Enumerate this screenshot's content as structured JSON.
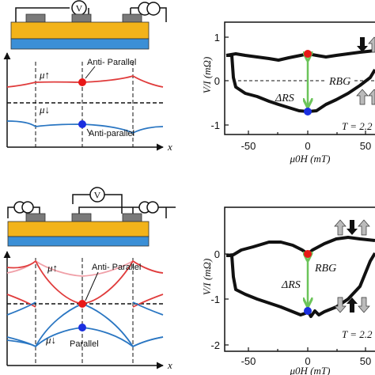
{
  "top_left": {
    "voltmeter": "V",
    "mu_up": "μ↑",
    "mu_down": "μ↓",
    "state_upper": "Anti- Parallel",
    "state_lower": "Anti-parallel",
    "x_axis": "x"
  },
  "bottom_left": {
    "voltmeter": "V",
    "mu_up": "μ↑",
    "mu_down": "μ↓",
    "state_upper": "Anti- Parallel",
    "state_lower": "Parallel",
    "x_axis": "x"
  },
  "top_right": {
    "ylabel": "V/I (mΩ)",
    "xlabel": "μ0H (mT)",
    "rbg_label": "RBG",
    "delta_label": "ΔRS",
    "temperature": "T = 2.2",
    "xticks": [
      "-50",
      "0",
      "50"
    ],
    "yticks": [
      "1",
      "0",
      "-1"
    ]
  },
  "bottom_right": {
    "ylabel": "V/I (mΩ)",
    "xlabel": "μ0H (mT)",
    "rbg_label": "RBG",
    "delta_label": "ΔRS",
    "temperature": "T = 2.2",
    "xticks": [
      "-50",
      "0",
      "50"
    ],
    "yticks": [
      "0",
      "-1",
      "-2"
    ]
  },
  "colors": {
    "gold": "#f2b31a",
    "blue_substrate": "#3b8fd6",
    "contact_gray": "#7a7a7a",
    "red_curve": "#e03c3c",
    "pink_curve": "#f0a0a8",
    "blue_curve": "#2a76c2",
    "green_arrow": "#6cc45a",
    "red_dot": "#e81818",
    "blue_dot": "#1a2fe0"
  },
  "chart_data": [
    {
      "type": "scatter",
      "xlabel": "μ0H (mT)",
      "ylabel": "V/I (mΩ)",
      "xlim": [
        -90,
        85
      ],
      "ylim": [
        -1.3,
        1.3
      ],
      "series": [
        {
          "x": [
            -90,
            -80,
            -60,
            -40,
            -20,
            0,
            20,
            40,
            60,
            85
          ],
          "y": [
            0.7,
            0.7,
            0.65,
            0.58,
            0.6,
            0.62,
            0.6,
            0.62,
            0.67,
            0.72
          ]
        },
        {
          "x": [
            -90,
            -80,
            -78,
            -70,
            -60,
            -40,
            -20,
            0,
            20,
            40,
            60,
            80,
            85
          ],
          "y": [
            0.7,
            0.65,
            -0.3,
            -0.35,
            -0.4,
            -0.55,
            -0.6,
            -0.62,
            -0.55,
            -0.35,
            -0.2,
            0.15,
            0.3
          ]
        }
      ]
    },
    {
      "type": "scatter",
      "xlabel": "μ0H (mT)",
      "ylabel": "V/I (mΩ)",
      "xlim": [
        -90,
        85
      ],
      "ylim": [
        -2.2,
        0.8
      ],
      "series": [
        {
          "x": [
            -90,
            -75,
            -60,
            -40,
            -20,
            0,
            20,
            40,
            60,
            85
          ],
          "y": [
            0.05,
            0.15,
            0.25,
            0.35,
            0.3,
            0.0,
            0.25,
            0.4,
            0.35,
            0.3
          ]
        },
        {
          "x": [
            -90,
            -80,
            -75,
            -70,
            -60,
            -40,
            -20,
            0,
            20,
            40,
            60,
            80,
            85
          ],
          "y": [
            0.05,
            -1.1,
            -1.3,
            -1.4,
            -1.5,
            -1.55,
            -1.65,
            -1.75,
            -1.6,
            -1.5,
            -1.3,
            -0.8,
            0.1
          ]
        }
      ]
    }
  ]
}
